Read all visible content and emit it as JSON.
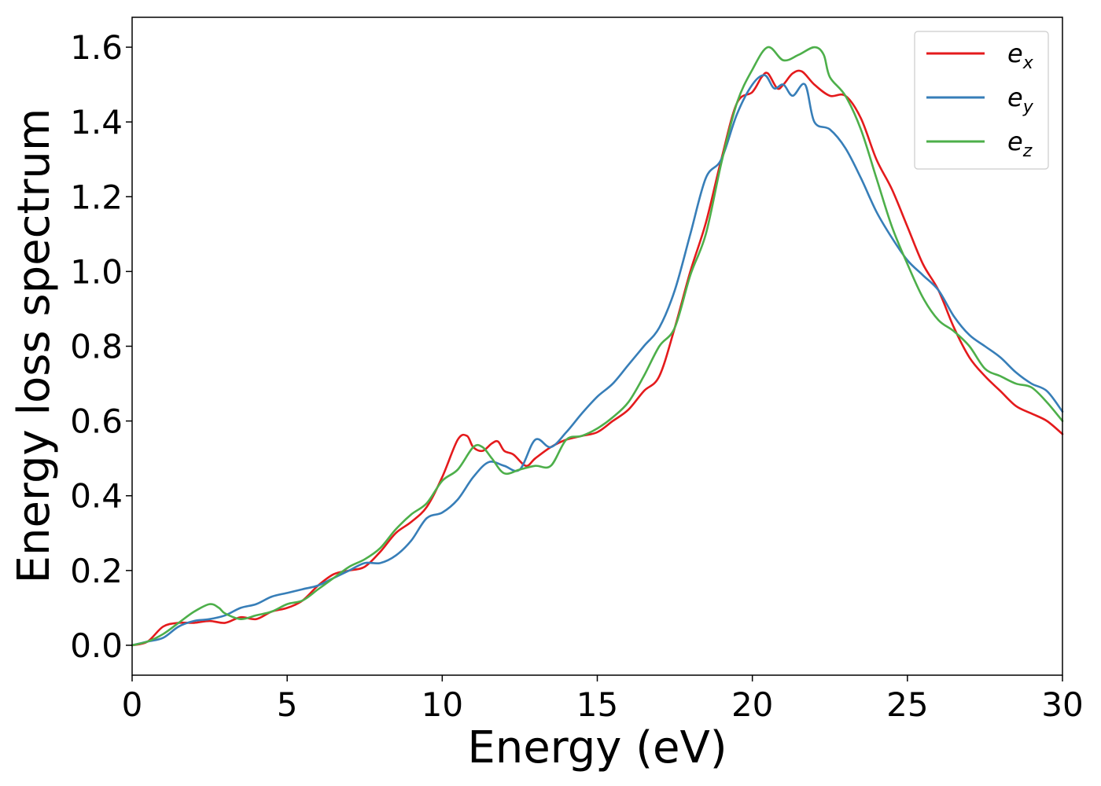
{
  "chart_data": {
    "type": "line",
    "xlabel": "Energy (eV)",
    "ylabel": "Energy loss spectrum",
    "xlim": [
      0,
      30
    ],
    "ylim": [
      -0.08,
      1.68
    ],
    "xticks": [
      0,
      5,
      10,
      15,
      20,
      25,
      30
    ],
    "xtick_labels": [
      "0",
      "5",
      "10",
      "15",
      "20",
      "25",
      "30"
    ],
    "yticks": [
      0.0,
      0.2,
      0.4,
      0.6,
      0.8,
      1.0,
      1.2,
      1.4,
      1.6
    ],
    "ytick_labels": [
      "0.0",
      "0.2",
      "0.4",
      "0.6",
      "0.8",
      "1.0",
      "1.2",
      "1.4",
      "1.6"
    ],
    "grid": false,
    "legend_position": "top-right",
    "series": [
      {
        "name": "e_x",
        "legend_base": "e",
        "legend_sub": "x",
        "color": "#e41a1c",
        "x": [
          0,
          0.5,
          1,
          1.5,
          2,
          2.5,
          3,
          3.5,
          4,
          4.5,
          5,
          5.5,
          6,
          6.5,
          7,
          7.5,
          8,
          8.5,
          9,
          9.5,
          10,
          10.5,
          10.8,
          11,
          11.3,
          11.6,
          11.8,
          12,
          12.3,
          12.7,
          13,
          13.5,
          14,
          14.5,
          15,
          15.5,
          16,
          16.5,
          17,
          17.5,
          18,
          18.5,
          19,
          19.5,
          20,
          20.3,
          20.5,
          20.8,
          21,
          21.3,
          21.6,
          22,
          22.5,
          23,
          23.5,
          24,
          24.5,
          25,
          25.5,
          26,
          26.5,
          27,
          27.5,
          28,
          28.5,
          29,
          29.5,
          30
        ],
        "y": [
          0,
          0.01,
          0.05,
          0.06,
          0.06,
          0.065,
          0.06,
          0.075,
          0.07,
          0.09,
          0.1,
          0.12,
          0.16,
          0.19,
          0.2,
          0.21,
          0.25,
          0.3,
          0.33,
          0.37,
          0.45,
          0.55,
          0.56,
          0.53,
          0.52,
          0.54,
          0.545,
          0.52,
          0.51,
          0.48,
          0.5,
          0.53,
          0.55,
          0.56,
          0.57,
          0.6,
          0.63,
          0.68,
          0.72,
          0.85,
          1.0,
          1.13,
          1.3,
          1.45,
          1.48,
          1.52,
          1.53,
          1.49,
          1.5,
          1.53,
          1.535,
          1.5,
          1.47,
          1.47,
          1.41,
          1.3,
          1.22,
          1.12,
          1.02,
          0.95,
          0.85,
          0.77,
          0.72,
          0.68,
          0.64,
          0.62,
          0.6,
          0.565
        ]
      },
      {
        "name": "e_y",
        "legend_base": "e",
        "legend_sub": "y",
        "color": "#377eb8",
        "x": [
          0,
          0.5,
          1,
          1.5,
          2,
          2.5,
          3,
          3.5,
          4,
          4.5,
          5,
          5.5,
          6,
          6.5,
          7,
          7.5,
          8,
          8.5,
          9,
          9.5,
          10,
          10.5,
          11,
          11.5,
          12,
          12.5,
          13,
          13.5,
          14,
          14.5,
          15,
          15.5,
          16,
          16.5,
          17,
          17.5,
          18,
          18.5,
          19,
          19.5,
          20,
          20.4,
          20.7,
          21,
          21.3,
          21.7,
          22,
          22.5,
          23,
          23.5,
          24,
          24.5,
          25,
          25.5,
          26,
          26.5,
          27,
          27.5,
          28,
          28.5,
          29,
          29.5,
          30
        ],
        "y": [
          0,
          0.01,
          0.02,
          0.05,
          0.065,
          0.07,
          0.08,
          0.1,
          0.11,
          0.13,
          0.14,
          0.15,
          0.16,
          0.18,
          0.2,
          0.22,
          0.22,
          0.24,
          0.28,
          0.34,
          0.355,
          0.39,
          0.45,
          0.49,
          0.48,
          0.47,
          0.55,
          0.53,
          0.57,
          0.62,
          0.665,
          0.7,
          0.75,
          0.8,
          0.85,
          0.95,
          1.1,
          1.25,
          1.3,
          1.42,
          1.5,
          1.525,
          1.49,
          1.5,
          1.47,
          1.5,
          1.4,
          1.38,
          1.33,
          1.25,
          1.16,
          1.09,
          1.03,
          0.99,
          0.95,
          0.88,
          0.83,
          0.8,
          0.77,
          0.73,
          0.7,
          0.68,
          0.625
        ]
      },
      {
        "name": "e_z",
        "legend_base": "e",
        "legend_sub": "z",
        "color": "#4daf4a",
        "x": [
          0,
          0.5,
          1,
          1.5,
          2,
          2.5,
          2.8,
          3,
          3.5,
          4,
          4.5,
          5,
          5.5,
          6,
          6.5,
          7,
          7.5,
          8,
          8.5,
          9,
          9.5,
          10,
          10.5,
          11,
          11.3,
          11.6,
          12,
          12.5,
          13,
          13.5,
          14,
          14.5,
          15,
          15.5,
          16,
          16.5,
          17,
          17.5,
          18,
          18.5,
          19,
          19.5,
          20,
          20.5,
          21,
          21.5,
          22,
          22.3,
          22.5,
          23,
          23.5,
          24,
          24.5,
          25,
          25.5,
          26,
          26.5,
          27,
          27.5,
          28,
          28.5,
          29,
          29.5,
          30
        ],
        "y": [
          0,
          0.01,
          0.03,
          0.06,
          0.09,
          0.11,
          0.1,
          0.085,
          0.07,
          0.08,
          0.09,
          0.11,
          0.12,
          0.15,
          0.18,
          0.21,
          0.23,
          0.26,
          0.31,
          0.35,
          0.38,
          0.44,
          0.47,
          0.53,
          0.53,
          0.5,
          0.46,
          0.47,
          0.48,
          0.48,
          0.55,
          0.56,
          0.58,
          0.61,
          0.65,
          0.72,
          0.8,
          0.85,
          0.99,
          1.1,
          1.29,
          1.45,
          1.54,
          1.6,
          1.565,
          1.58,
          1.6,
          1.58,
          1.52,
          1.47,
          1.38,
          1.25,
          1.12,
          1.02,
          0.93,
          0.87,
          0.84,
          0.8,
          0.74,
          0.72,
          0.7,
          0.69,
          0.65,
          0.6
        ]
      }
    ]
  }
}
